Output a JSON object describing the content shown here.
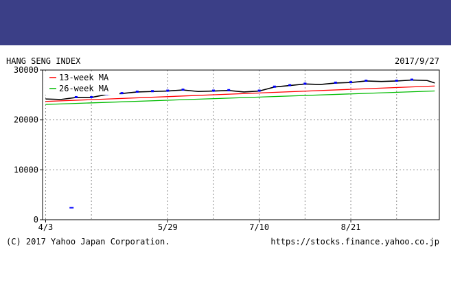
{
  "chart_data": {
    "type": "line",
    "title": "HANG SENG INDEX",
    "date_label": "2017/9/27",
    "copyright": "(C) 2017 Yahoo Japan Corporation.",
    "source_url": "https://stocks.finance.yahoo.co.jp",
    "x_tick_labels": [
      "4/3",
      "5/29",
      "7/10",
      "8/21"
    ],
    "x_tick_weeks": [
      0,
      8,
      14,
      20
    ],
    "y_tick_labels": [
      "30000",
      "20000",
      "10000",
      "0"
    ],
    "ylim": [
      0,
      30000
    ],
    "xlim_weeks": [
      -0.2,
      25.8
    ],
    "grid": true,
    "legend_position": "top-left",
    "colors": {
      "banner": "#3b3f87",
      "price": "#000000",
      "up_candle": "#0000ff",
      "ma13": "#ff0000",
      "ma26": "#00bb00"
    },
    "series": [
      {
        "name": "",
        "color": "#000000",
        "x": [
          0,
          1,
          2,
          3,
          4,
          5,
          6,
          7,
          8,
          9,
          10,
          11,
          12,
          13,
          14,
          15,
          16,
          17,
          18,
          19,
          20,
          21,
          22,
          23,
          24,
          25,
          25.5
        ],
        "values": [
          24200,
          24100,
          24500,
          24500,
          25100,
          25300,
          25600,
          25700,
          25800,
          26000,
          25700,
          25800,
          25900,
          25600,
          25800,
          26600,
          26900,
          27200,
          27100,
          27400,
          27500,
          27800,
          27700,
          27800,
          28000,
          27900,
          27400
        ]
      },
      {
        "name": "13-week MA",
        "color": "#ff0000",
        "x": [
          0,
          25.5
        ],
        "values": [
          23700,
          26800
        ]
      },
      {
        "name": "26-week MA",
        "color": "#00bb00",
        "x": [
          0,
          25.5
        ],
        "values": [
          23100,
          25800
        ]
      }
    ],
    "annotations": [
      {
        "x": 1.7,
        "value": 2400,
        "color": "#0000ff"
      }
    ]
  }
}
